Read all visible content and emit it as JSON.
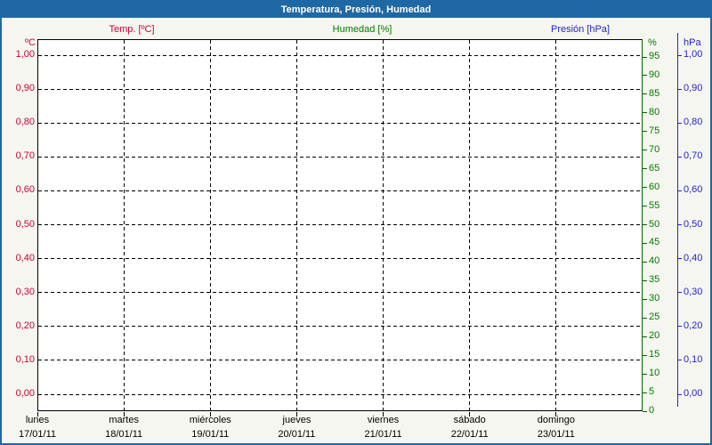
{
  "header": {
    "title": "Temperatura, Presión, Humedad"
  },
  "colors": {
    "header_bg": "#2068A3",
    "frame_border": "#2068A3",
    "background": "#F6F6F0",
    "plot_background": "#FFFFFF",
    "grid": "#000000",
    "temperature": "#CC0033",
    "humidity": "#007B00",
    "humidity_axis_line": "#006600",
    "pressure": "#2323CE"
  },
  "chart_data": {
    "type": "line",
    "title": "Temperatura, Presión, Humedad",
    "legend_position": "top",
    "grid": true,
    "series": [
      {
        "name": "Temp. [ºC]",
        "color": "#CC0033",
        "axis": "temperature",
        "values": []
      },
      {
        "name": "Humedad [%]",
        "color": "#007B00",
        "axis": "humidity",
        "values": []
      },
      {
        "name": "Presión [hPa]",
        "color": "#2323CE",
        "axis": "pressure",
        "values": []
      }
    ],
    "axes": {
      "temperature": {
        "unit": "ºC",
        "side": "left",
        "min": 0.0,
        "max": 1.0,
        "step": 0.1,
        "tick_labels": [
          "1,00",
          "0,90",
          "0,80",
          "0,70",
          "0,60",
          "0,50",
          "0,40",
          "0,30",
          "0,20",
          "0,10",
          "0,00"
        ]
      },
      "humidity": {
        "unit": "%",
        "side": "right-inner",
        "min": 0,
        "max": 95,
        "step": 5,
        "tick_labels": [
          "95",
          "90",
          "85",
          "80",
          "75",
          "70",
          "65",
          "60",
          "55",
          "50",
          "45",
          "40",
          "35",
          "30",
          "25",
          "20",
          "15",
          "10",
          "5",
          "0"
        ]
      },
      "pressure": {
        "unit": "hPa",
        "side": "right-outer",
        "min": 0.0,
        "max": 1.0,
        "step": 0.1,
        "tick_labels": [
          "1,00",
          "0,90",
          "0,80",
          "0,70",
          "0,60",
          "0,50",
          "0,40",
          "0,30",
          "0,20",
          "0,10",
          "0,00"
        ]
      }
    },
    "x_axis": {
      "days": [
        {
          "name": "lunes",
          "date": "17/01/11"
        },
        {
          "name": "martes",
          "date": "18/01/11"
        },
        {
          "name": "miércoles",
          "date": "19/01/11"
        },
        {
          "name": "jueves",
          "date": "20/01/11"
        },
        {
          "name": "viernes",
          "date": "21/01/11"
        },
        {
          "name": "sábado",
          "date": "22/01/11"
        },
        {
          "name": "domingo",
          "date": "23/01/11"
        }
      ]
    }
  }
}
